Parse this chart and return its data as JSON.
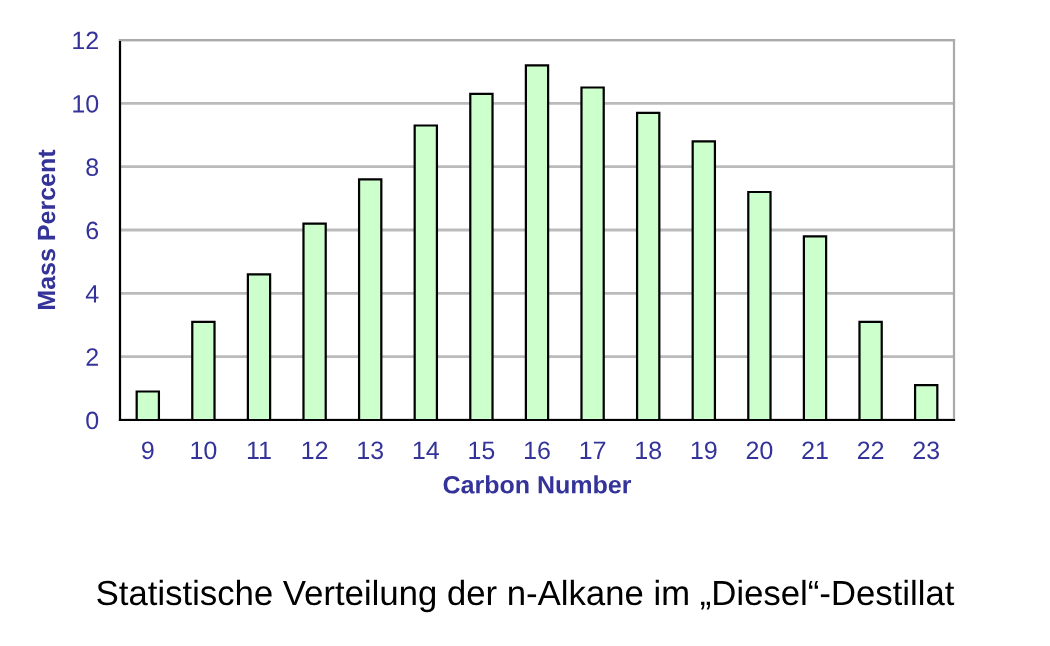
{
  "chart_data": {
    "type": "bar",
    "categories": [
      "9",
      "10",
      "11",
      "12",
      "13",
      "14",
      "15",
      "16",
      "17",
      "18",
      "19",
      "20",
      "21",
      "22",
      "23"
    ],
    "values": [
      0.9,
      3.1,
      4.6,
      6.2,
      7.6,
      9.3,
      10.3,
      11.2,
      10.5,
      9.7,
      8.8,
      7.2,
      5.8,
      3.1,
      1.1
    ],
    "color": "#ccffcc",
    "xlabel": "Carbon Number",
    "ylabel": "Mass Percent",
    "ylim": [
      0,
      12
    ],
    "yticks": [
      0,
      2,
      4,
      6,
      8,
      10,
      12
    ],
    "grid": "y",
    "annotations": [
      "Statistische Verteilung der n-Alkane im „Diesel“-Destillat"
    ]
  }
}
